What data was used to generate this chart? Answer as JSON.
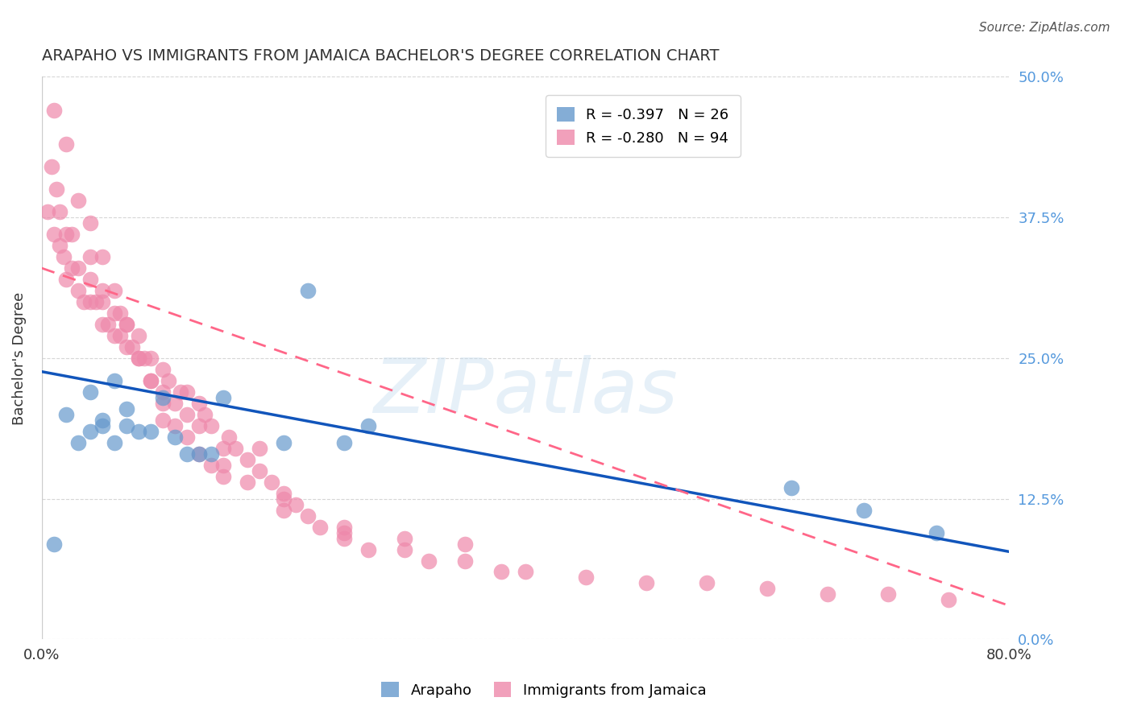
{
  "title": "ARAPAHO VS IMMIGRANTS FROM JAMAICA BACHELOR'S DEGREE CORRELATION CHART",
  "source": "Source: ZipAtlas.com",
  "ylabel": "Bachelor's Degree",
  "right_ytick_labels": [
    "0.0%",
    "12.5%",
    "25.0%",
    "37.5%",
    "50.0%"
  ],
  "right_ytick_values": [
    0.0,
    0.125,
    0.25,
    0.375,
    0.5
  ],
  "xlim": [
    0.0,
    0.8
  ],
  "ylim": [
    0.0,
    0.5
  ],
  "blue_color": "#6699cc",
  "pink_color": "#ee88aa",
  "trend_blue": "#1155bb",
  "trend_pink": "#ff6688",
  "watermark": "ZIPatlas",
  "background_color": "#ffffff",
  "grid_color": "#cccccc",
  "right_label_color": "#5599dd",
  "arapaho_x": [
    0.01,
    0.02,
    0.03,
    0.04,
    0.04,
    0.05,
    0.05,
    0.06,
    0.06,
    0.07,
    0.07,
    0.08,
    0.09,
    0.1,
    0.11,
    0.12,
    0.13,
    0.14,
    0.15,
    0.2,
    0.22,
    0.25,
    0.27,
    0.62,
    0.68,
    0.74
  ],
  "arapaho_y": [
    0.085,
    0.2,
    0.175,
    0.185,
    0.22,
    0.195,
    0.19,
    0.175,
    0.23,
    0.19,
    0.205,
    0.185,
    0.185,
    0.215,
    0.18,
    0.165,
    0.165,
    0.165,
    0.215,
    0.175,
    0.31,
    0.175,
    0.19,
    0.135,
    0.115,
    0.095
  ],
  "jamaica_x": [
    0.005,
    0.008,
    0.01,
    0.012,
    0.015,
    0.015,
    0.018,
    0.02,
    0.02,
    0.025,
    0.025,
    0.03,
    0.03,
    0.035,
    0.04,
    0.04,
    0.04,
    0.045,
    0.05,
    0.05,
    0.05,
    0.055,
    0.06,
    0.06,
    0.065,
    0.065,
    0.07,
    0.07,
    0.075,
    0.08,
    0.08,
    0.085,
    0.09,
    0.09,
    0.1,
    0.1,
    0.105,
    0.11,
    0.115,
    0.12,
    0.12,
    0.13,
    0.13,
    0.135,
    0.14,
    0.15,
    0.155,
    0.16,
    0.17,
    0.18,
    0.18,
    0.19,
    0.2,
    0.21,
    0.22,
    0.23,
    0.25,
    0.27,
    0.3,
    0.32,
    0.35,
    0.38,
    0.4,
    0.45,
    0.5,
    0.55,
    0.6,
    0.65,
    0.7,
    0.75,
    0.01,
    0.02,
    0.03,
    0.04,
    0.05,
    0.06,
    0.07,
    0.08,
    0.09,
    0.1,
    0.11,
    0.12,
    0.13,
    0.14,
    0.15,
    0.17,
    0.2,
    0.25,
    0.3,
    0.35,
    0.1,
    0.15,
    0.2,
    0.25
  ],
  "jamaica_y": [
    0.38,
    0.42,
    0.36,
    0.4,
    0.35,
    0.38,
    0.34,
    0.32,
    0.36,
    0.33,
    0.36,
    0.31,
    0.33,
    0.3,
    0.3,
    0.32,
    0.34,
    0.3,
    0.28,
    0.3,
    0.31,
    0.28,
    0.27,
    0.29,
    0.27,
    0.29,
    0.26,
    0.28,
    0.26,
    0.25,
    0.27,
    0.25,
    0.23,
    0.25,
    0.22,
    0.24,
    0.23,
    0.21,
    0.22,
    0.2,
    0.22,
    0.19,
    0.21,
    0.2,
    0.19,
    0.17,
    0.18,
    0.17,
    0.16,
    0.15,
    0.17,
    0.14,
    0.13,
    0.12,
    0.11,
    0.1,
    0.09,
    0.08,
    0.08,
    0.07,
    0.07,
    0.06,
    0.06,
    0.055,
    0.05,
    0.05,
    0.045,
    0.04,
    0.04,
    0.035,
    0.47,
    0.44,
    0.39,
    0.37,
    0.34,
    0.31,
    0.28,
    0.25,
    0.23,
    0.21,
    0.19,
    0.18,
    0.165,
    0.155,
    0.145,
    0.14,
    0.115,
    0.1,
    0.09,
    0.085,
    0.195,
    0.155,
    0.125,
    0.095
  ],
  "ara_trend": [
    0.238,
    0.078
  ],
  "jam_trend": [
    0.33,
    0.03
  ]
}
